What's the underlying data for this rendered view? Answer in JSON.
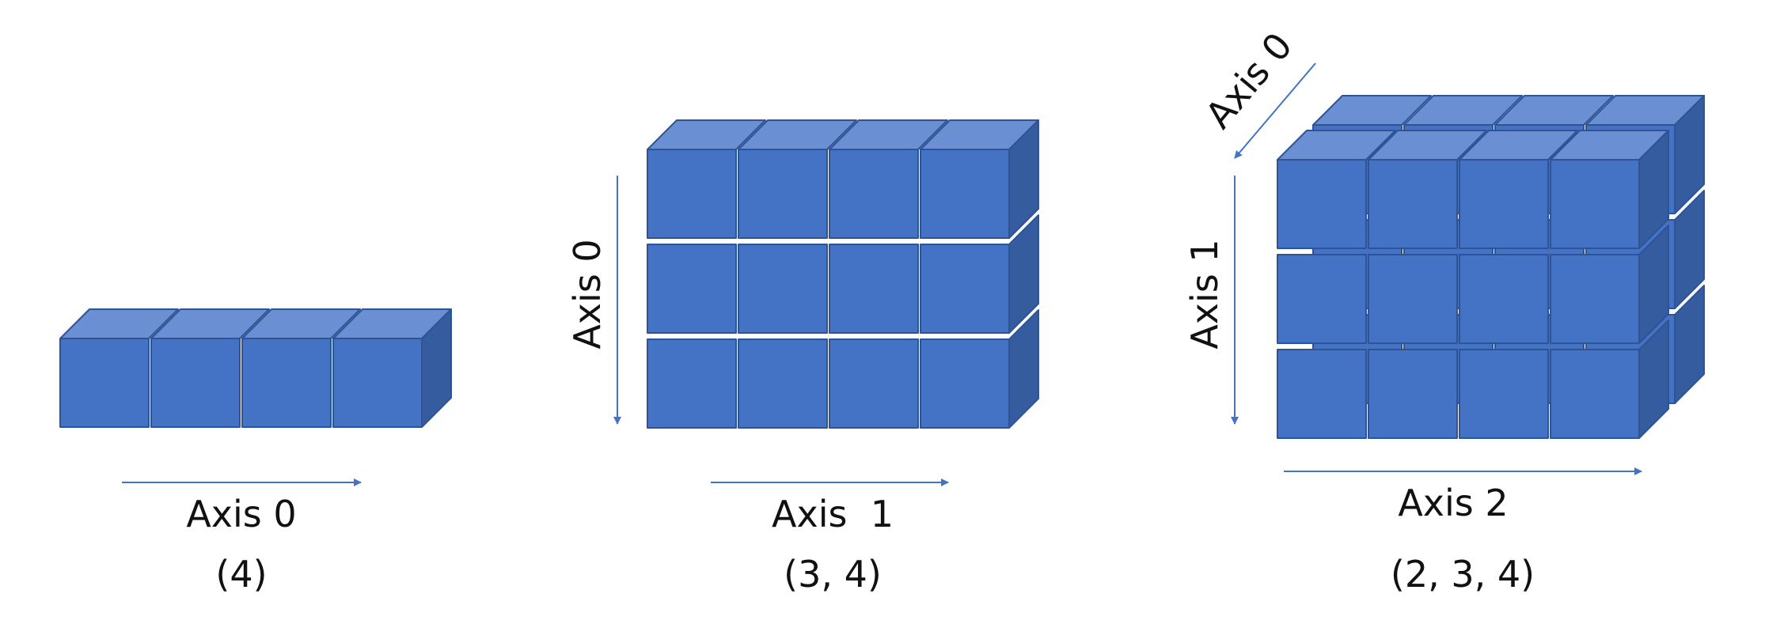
{
  "colors": {
    "cube_front": "#4472C4",
    "cube_top": "#6A8FD3",
    "cube_side": "#345C9E",
    "cube_edge": "#2F5496",
    "arrow": "#4472C4"
  },
  "diagrams": [
    {
      "dims": [
        4
      ],
      "axis_labels": [
        {
          "key": "h",
          "text": "Axis 0"
        }
      ],
      "shape": "(4)"
    },
    {
      "dims": [
        3,
        4
      ],
      "axis_labels": [
        {
          "key": "v",
          "text": "Axis 0"
        },
        {
          "key": "h",
          "text": "Axis  1"
        }
      ],
      "shape": "(3, 4)"
    },
    {
      "dims": [
        2,
        3,
        4
      ],
      "axis_labels": [
        {
          "key": "d",
          "text": "Axis 0"
        },
        {
          "key": "v",
          "text": "Axis 1"
        },
        {
          "key": "h",
          "text": "Axis 2"
        }
      ],
      "shape": "(2, 3, 4)"
    }
  ]
}
